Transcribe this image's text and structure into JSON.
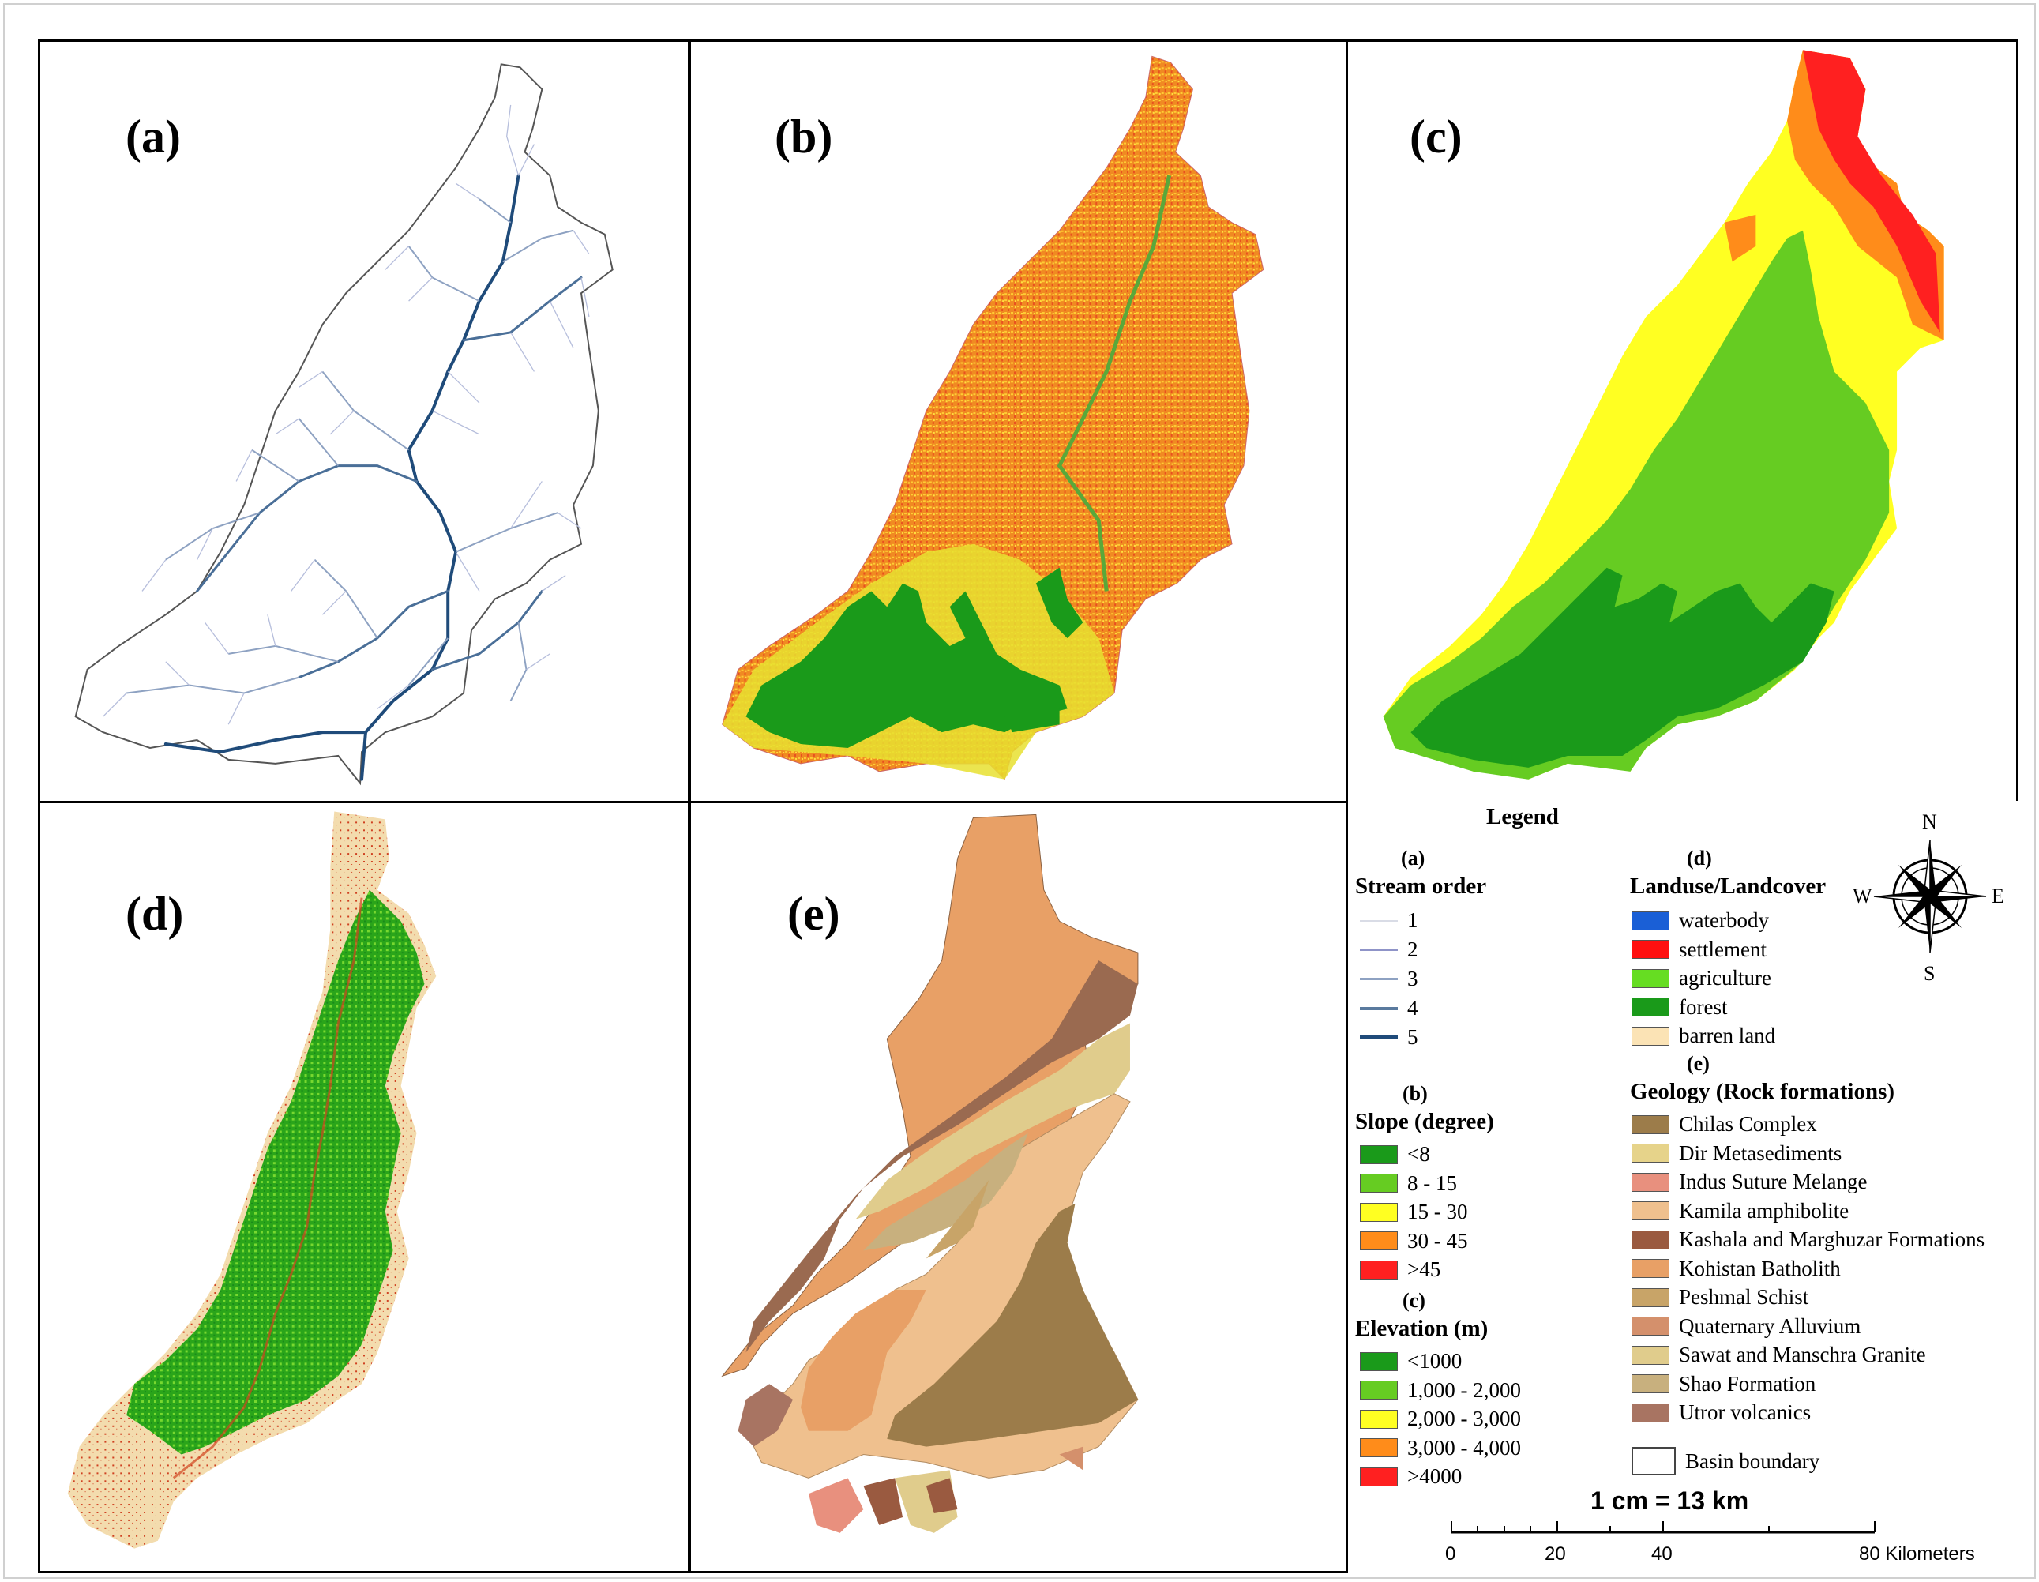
{
  "panels": [
    {
      "label": "(a)"
    },
    {
      "label": "(b)"
    },
    {
      "label": "(c)"
    },
    {
      "label": "(d)"
    },
    {
      "label": "(e)"
    }
  ],
  "legend": {
    "title": "Legend",
    "stream": {
      "tag": "(a)",
      "heading": "Stream order",
      "items": [
        {
          "label": "1",
          "color": "#d9dce6",
          "width": 1
        },
        {
          "label": "2",
          "color": "#8f94c8",
          "width": 2
        },
        {
          "label": "3",
          "color": "#8ea2c2",
          "width": 2
        },
        {
          "label": "4",
          "color": "#5a7a9e",
          "width": 3
        },
        {
          "label": "5",
          "color": "#1f4b7a",
          "width": 4
        }
      ]
    },
    "slope": {
      "tag": "(b)",
      "heading": "Slope (degree)",
      "items": [
        {
          "label": "<8",
          "color": "#1a9a1a"
        },
        {
          "label": "8 - 15",
          "color": "#66cc22"
        },
        {
          "label": "15 - 30",
          "color": "#ffff22"
        },
        {
          "label": "30 - 45",
          "color": "#ff8c1a"
        },
        {
          "label": ">45",
          "color": "#ff2020"
        }
      ]
    },
    "elevation": {
      "tag": "(c)",
      "heading": "Elevation (m)",
      "items": [
        {
          "label": "<1000",
          "color": "#1a9a1a"
        },
        {
          "label": "1,000 - 2,000",
          "color": "#66cc22"
        },
        {
          "label": "2,000 - 3,000",
          "color": "#ffff22"
        },
        {
          "label": "3,000 - 4,000",
          "color": "#ff8c1a"
        },
        {
          "label": ">4000",
          "color": "#ff2020"
        }
      ]
    },
    "landuse": {
      "tag": "(d)",
      "heading": "Landuse/Landcover",
      "items": [
        {
          "label": "waterbody",
          "color": "#1a5fd6"
        },
        {
          "label": "settlement",
          "color": "#ff1010"
        },
        {
          "label": "agriculture",
          "color": "#66dd22"
        },
        {
          "label": "forest",
          "color": "#1a9a1a"
        },
        {
          "label": "barren land",
          "color": "#fbe3b5"
        }
      ]
    },
    "geology": {
      "tag": "(e)",
      "heading": "Geology (Rock formations)",
      "items": [
        {
          "label": "Chilas Complex",
          "color": "#9c7c4a"
        },
        {
          "label": "Dir Metasediments",
          "color": "#e6d38a"
        },
        {
          "label": "Indus Suture Melange",
          "color": "#e8907e"
        },
        {
          "label": "Kamila amphibolite",
          "color": "#efc08e"
        },
        {
          "label": "Kashala and Marghuzar Formations",
          "color": "#9a5a40"
        },
        {
          "label": "Kohistan Batholith",
          "color": "#e8a066"
        },
        {
          "label": "Peshmal Schist",
          "color": "#c8a468"
        },
        {
          "label": "Quaternary Alluvium",
          "color": "#d4906c"
        },
        {
          "label": "Sawat and Manschra Granite",
          "color": "#e0cc8c"
        },
        {
          "label": "Shao Formation",
          "color": "#c8b07e"
        },
        {
          "label": "Utror volcanics",
          "color": "#a87462"
        }
      ]
    },
    "boundary_label": "Basin boundary",
    "scale": {
      "title": "1 cm = 13 km",
      "ticks": [
        "0",
        "20",
        "40",
        "80 Kilometers"
      ]
    },
    "compass": {
      "n": "N",
      "s": "S",
      "e": "E",
      "w": "W"
    }
  }
}
